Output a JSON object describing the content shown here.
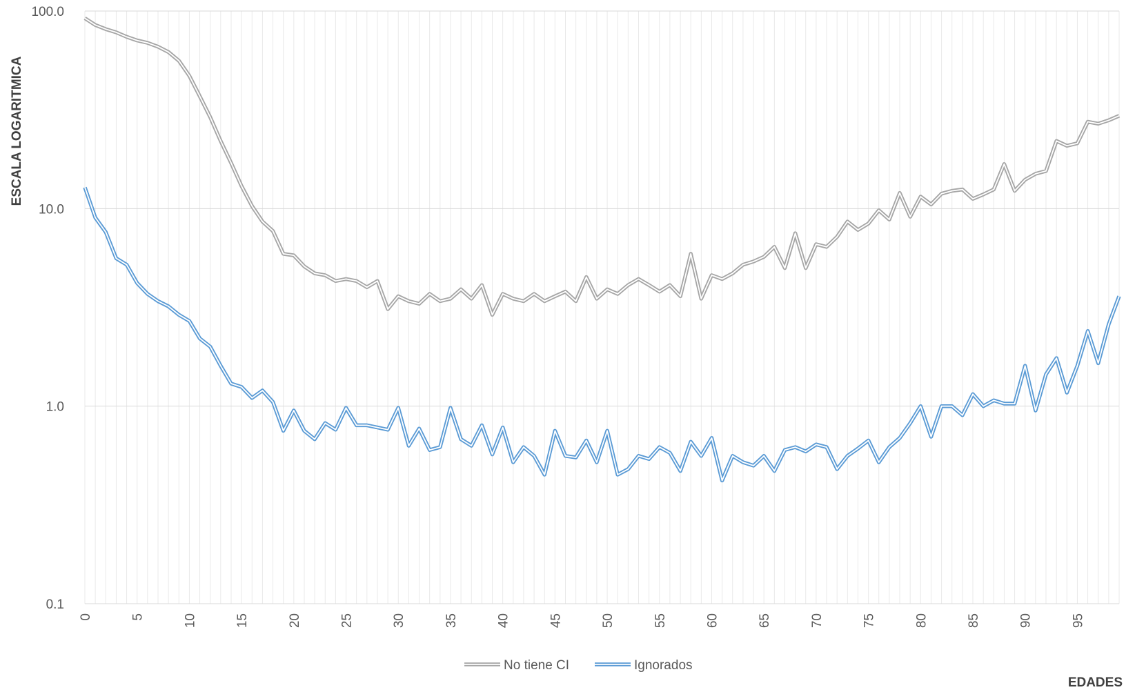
{
  "chart_data": {
    "type": "line",
    "title": "",
    "xlabel": "EDADES",
    "ylabel": "ESCALA LOGARITMICA",
    "y_scale": "log",
    "ylim": [
      0.1,
      100
    ],
    "y_ticks": [
      "0.1",
      "1.0",
      "10.0",
      "100.0"
    ],
    "xlim": [
      0,
      99
    ],
    "x_ticks": [
      "0",
      "5",
      "10",
      "15",
      "20",
      "25",
      "30",
      "35",
      "40",
      "45",
      "50",
      "55",
      "60",
      "65",
      "70",
      "75",
      "80",
      "85",
      "90",
      "95"
    ],
    "grid": "horizontal major and vertical per age",
    "legend_position": "bottom",
    "series": [
      {
        "name": "No tiene CI",
        "color": "#a6a6a6",
        "style": "double",
        "values": [
          92,
          85,
          81,
          78,
          74,
          71,
          69,
          66,
          62,
          56,
          47,
          37,
          29,
          22,
          17,
          13,
          10.3,
          8.6,
          7.7,
          5.9,
          5.8,
          5.1,
          4.7,
          4.6,
          4.3,
          4.4,
          4.3,
          4.0,
          4.3,
          3.1,
          3.6,
          3.4,
          3.3,
          3.7,
          3.4,
          3.5,
          3.9,
          3.5,
          4.1,
          2.9,
          3.7,
          3.5,
          3.4,
          3.7,
          3.4,
          3.6,
          3.8,
          3.4,
          4.5,
          3.5,
          3.9,
          3.7,
          4.1,
          4.4,
          4.1,
          3.8,
          4.1,
          3.6,
          5.9,
          3.5,
          4.6,
          4.4,
          4.7,
          5.2,
          5.4,
          5.7,
          6.4,
          5.0,
          7.5,
          5.0,
          6.6,
          6.4,
          7.2,
          8.6,
          7.8,
          8.4,
          9.8,
          8.8,
          12.0,
          9.1,
          11.5,
          10.5,
          11.9,
          12.3,
          12.5,
          11.2,
          11.8,
          12.5,
          16.8,
          12.3,
          14.0,
          15.0,
          15.5,
          22.0,
          20.8,
          21.4,
          27.5,
          26.9,
          28.0,
          29.5
        ]
      },
      {
        "name": "Ignorados",
        "color": "#5b9bd5",
        "style": "double",
        "values": [
          12.8,
          9.0,
          7.6,
          5.6,
          5.2,
          4.2,
          3.7,
          3.4,
          3.2,
          2.9,
          2.7,
          2.2,
          2.0,
          1.6,
          1.3,
          1.25,
          1.1,
          1.2,
          1.05,
          0.75,
          0.95,
          0.75,
          0.68,
          0.82,
          0.76,
          0.98,
          0.8,
          0.8,
          0.78,
          0.76,
          0.98,
          0.63,
          0.77,
          0.6,
          0.62,
          0.98,
          0.68,
          0.63,
          0.8,
          0.57,
          0.78,
          0.52,
          0.62,
          0.56,
          0.45,
          0.75,
          0.56,
          0.55,
          0.67,
          0.52,
          0.75,
          0.45,
          0.48,
          0.56,
          0.54,
          0.62,
          0.58,
          0.47,
          0.66,
          0.56,
          0.69,
          0.42,
          0.56,
          0.52,
          0.5,
          0.56,
          0.47,
          0.6,
          0.62,
          0.59,
          0.64,
          0.62,
          0.48,
          0.56,
          0.61,
          0.67,
          0.52,
          0.62,
          0.69,
          0.82,
          1.0,
          0.7,
          1.0,
          1.0,
          0.9,
          1.15,
          1.0,
          1.07,
          1.03,
          1.03,
          1.6,
          0.95,
          1.45,
          1.75,
          1.17,
          1.6,
          2.4,
          1.65,
          2.6,
          3.6
        ]
      }
    ]
  }
}
